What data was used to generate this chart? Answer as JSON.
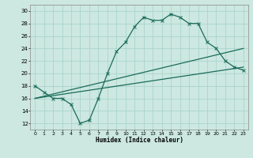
{
  "title": "",
  "xlabel": "Humidex (Indice chaleur)",
  "bg_color": "#cce8e0",
  "grid_color": "#aad4cc",
  "line_color": "#1a6b5a",
  "x_ticks": [
    0,
    1,
    2,
    3,
    4,
    5,
    6,
    7,
    8,
    9,
    10,
    11,
    12,
    13,
    14,
    15,
    16,
    17,
    18,
    19,
    20,
    21,
    22,
    23
  ],
  "y_ticks": [
    12,
    14,
    16,
    18,
    20,
    22,
    24,
    26,
    28,
    30
  ],
  "ylim": [
    11,
    31
  ],
  "xlim": [
    -0.5,
    23.5
  ],
  "curve1_x": [
    0,
    1,
    2,
    3,
    4,
    5,
    6,
    7,
    8,
    9,
    10,
    11,
    12,
    13,
    14,
    15,
    16,
    17,
    18,
    19,
    20,
    21,
    22,
    23
  ],
  "curve1_y": [
    18,
    17,
    16,
    16,
    15,
    12,
    12.5,
    16,
    20,
    23.5,
    25,
    27.5,
    29,
    28.5,
    28.5,
    29.5,
    29,
    28,
    28,
    25,
    24,
    22,
    21,
    20.5
  ],
  "curve2_x": [
    0,
    23
  ],
  "curve2_y": [
    16,
    21
  ],
  "curve3_x": [
    0,
    23
  ],
  "curve3_y": [
    16,
    24
  ],
  "figsize": [
    3.2,
    2.0
  ],
  "dpi": 100
}
